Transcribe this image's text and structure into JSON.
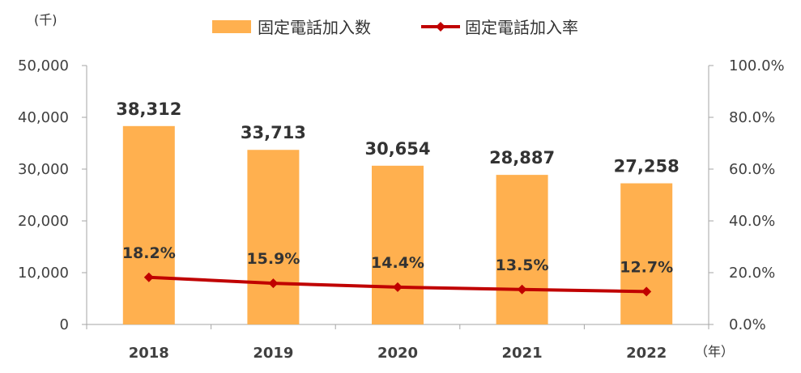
{
  "chart_data": {
    "type": "bar",
    "categories": [
      "2018",
      "2019",
      "2020",
      "2021",
      "2022"
    ],
    "series": [
      {
        "name": "固定電話加入数",
        "type": "bar",
        "axis": "left",
        "values": [
          38312,
          33713,
          30654,
          28887,
          27258
        ],
        "labels": [
          "38,312",
          "33,713",
          "30,654",
          "28,887",
          "27,258"
        ],
        "color": "#FFB04F"
      },
      {
        "name": "固定電話加入率",
        "type": "line",
        "axis": "right",
        "values": [
          18.2,
          15.9,
          14.4,
          13.5,
          12.7
        ],
        "labels": [
          "18.2%",
          "15.9%",
          "14.4%",
          "13.5%",
          "12.7%"
        ],
        "color": "#C00000"
      }
    ],
    "y_left": {
      "unit": "(千)",
      "ylim": [
        0,
        50000
      ],
      "ticks": [
        0,
        10000,
        20000,
        30000,
        40000,
        50000
      ],
      "tick_labels": [
        "0",
        "10,000",
        "20,000",
        "30,000",
        "40,000",
        "50,000"
      ]
    },
    "y_right": {
      "ylim": [
        0,
        100
      ],
      "ticks": [
        0,
        20,
        40,
        60,
        80,
        100
      ],
      "tick_labels": [
        "0.0%",
        "20.0%",
        "40.0%",
        "60.0%",
        "80.0%",
        "100.0%"
      ]
    },
    "x_unit": "（年）",
    "grid": false,
    "legend_position": "top-center"
  }
}
